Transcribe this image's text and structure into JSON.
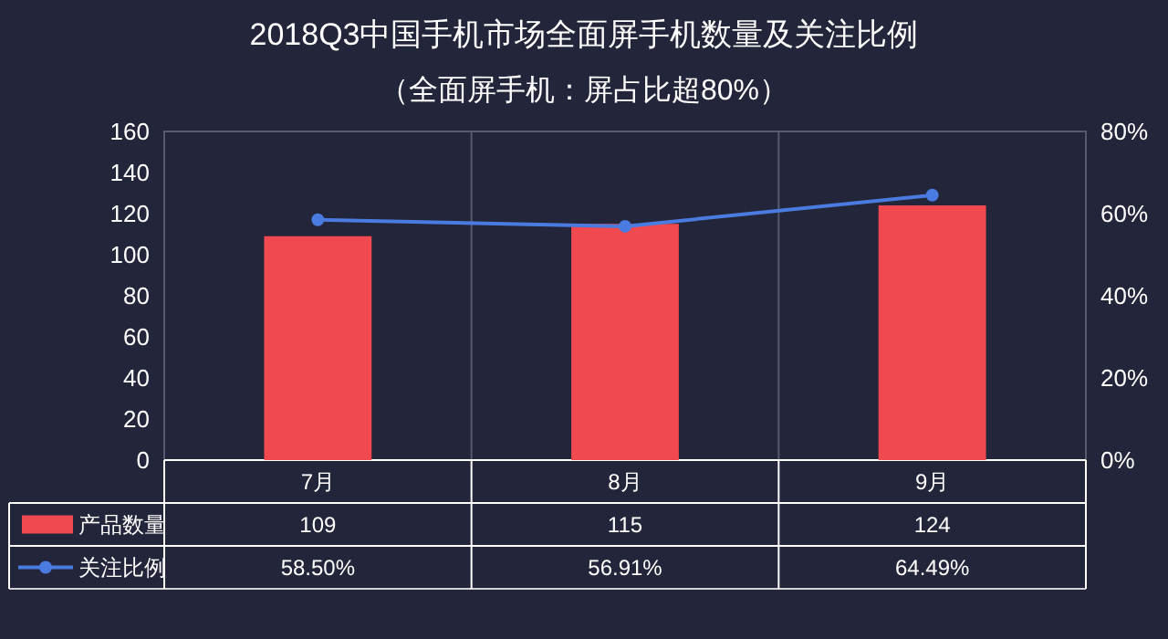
{
  "chart_data": {
    "type": "bar",
    "title": "2018Q3中国手机市场全面屏手机数量及关注比例",
    "subtitle": "（全面屏手机：屏占比超80%）",
    "categories": [
      "7月",
      "8月",
      "9月"
    ],
    "series": [
      {
        "name": "产品数量",
        "color": "#f0494f",
        "values": [
          109,
          115,
          124
        ],
        "value_labels": [
          "109",
          "115",
          "124"
        ]
      },
      {
        "name": "关注比例",
        "type": "line",
        "axis": "y2",
        "color": "#4a7be0",
        "marker": "circle",
        "values": [
          58.5,
          56.91,
          64.49
        ],
        "value_labels": [
          "58.50%",
          "56.91%",
          "64.49%"
        ]
      }
    ],
    "ylim": [
      0,
      160
    ],
    "yticks": [
      0,
      20,
      40,
      60,
      80,
      100,
      120,
      140,
      160
    ],
    "y2lim": [
      0,
      80
    ],
    "y2ticks": [
      {
        "value": 0,
        "label": "0%"
      },
      {
        "value": 20,
        "label": "20%"
      },
      {
        "value": 40,
        "label": "40%"
      },
      {
        "value": 60,
        "label": "60%"
      },
      {
        "value": 80,
        "label": "80%"
      }
    ],
    "legend": "bottom"
  }
}
